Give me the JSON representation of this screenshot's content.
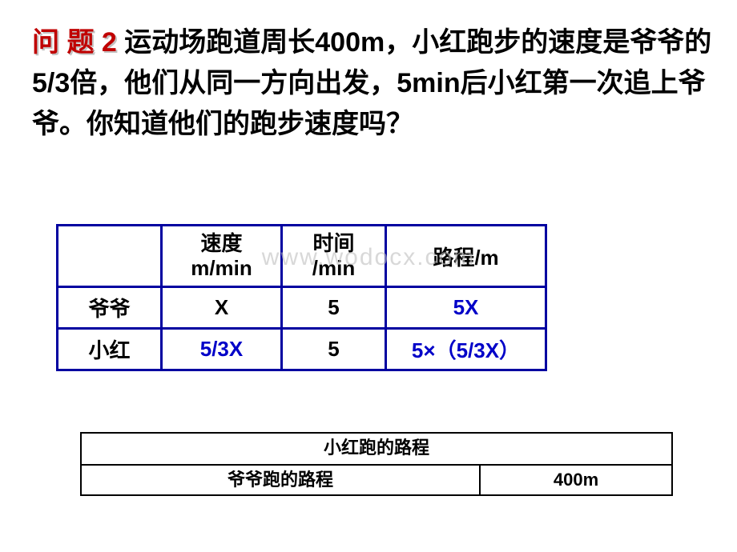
{
  "problem": {
    "label": "问 题 2",
    "text": "  运动场跑道周长400m，小红跑步的速度是爷爷的5/3倍，他们从同一方向出发，5min后小红第一次追上爷爷。你知道他们的跑步速度吗？"
  },
  "watermark": "www.wodocx.com",
  "table": {
    "headers": {
      "blank": "",
      "speed": "速度\nm/min",
      "time": "时间\n/min",
      "distance": "路程/m"
    },
    "rows": [
      {
        "label": "爷爷",
        "speed": "X",
        "time": "5",
        "distance": "5X",
        "speed_color": "#000000",
        "distance_color": "#0000c8",
        "dist_size": "26px"
      },
      {
        "label": "小红",
        "speed": "5/3X",
        "time": "5",
        "distance": "5×（5/3X）",
        "speed_color": "#0000c8",
        "distance_color": "#0000c8",
        "dist_size": "20px"
      }
    ]
  },
  "diagram": {
    "top": "小红跑的路程",
    "bottom_left": "爷爷跑的路程",
    "bottom_right": "400m"
  }
}
